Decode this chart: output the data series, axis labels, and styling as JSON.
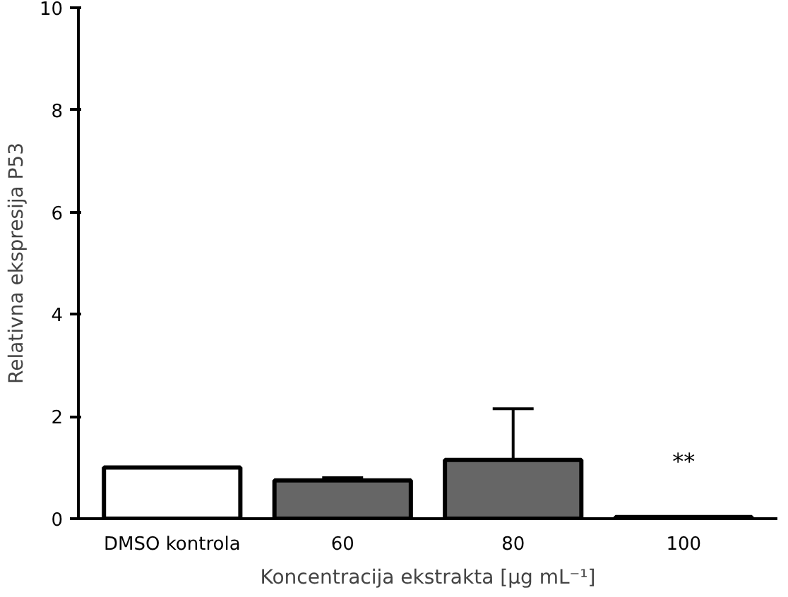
{
  "chart_data": {
    "type": "bar",
    "categories": [
      "DMSO kontrola",
      "60",
      "80",
      "100"
    ],
    "values": [
      1.0,
      0.75,
      1.15,
      0.03
    ],
    "colors": [
      "#ffffff",
      "#666666",
      "#666666",
      "#666666"
    ],
    "errors": [
      null,
      [
        0.75,
        0.8
      ],
      [
        1.15,
        2.15
      ],
      null
    ],
    "xlabel": "Koncentracija ekstrakta [μg mL⁻¹]",
    "ylabel": "Relativna ekspresija P53",
    "ylim": [
      0,
      10
    ],
    "yticks": [
      0,
      2,
      4,
      6,
      8,
      10
    ],
    "annotations": [
      "**"
    ],
    "grid": false
  }
}
